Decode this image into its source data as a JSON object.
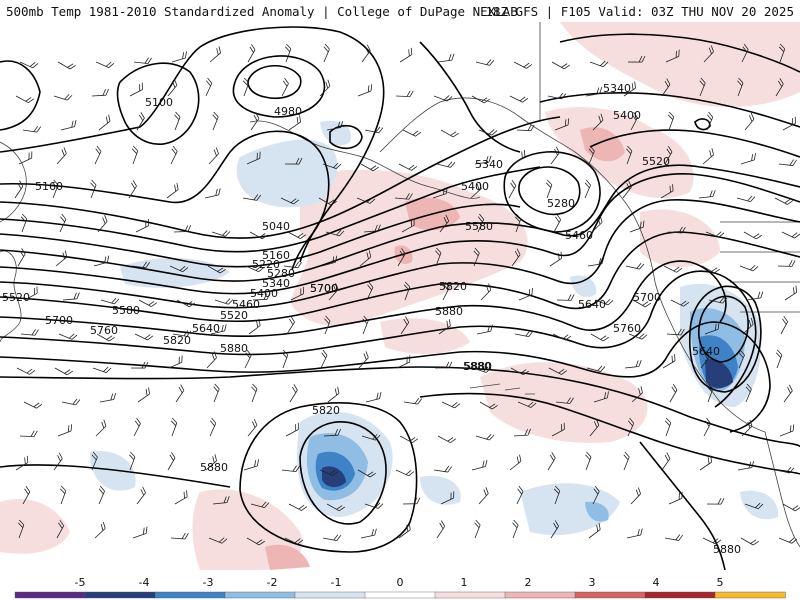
{
  "header": {
    "title_left": "500mb Temp 1981-2010 Standardized Anomaly | College of DuPage NEXLAB",
    "title_right": "18Z GFS | F105 Valid: 03Z THU NOV 20 2025"
  },
  "colors": {
    "anom_neg5": "#5b2a86",
    "anom_neg4": "#263f7a",
    "anom_neg3": "#3e82c8",
    "anom_neg2": "#8fbde3",
    "anom_neg1": "#d6e3f1",
    "anom_pos1": "#f6dede",
    "anom_pos2": "#eeb5b5",
    "anom_pos3": "#d66262",
    "anom_pos4": "#a8252d",
    "anom_pos5": "#f5b82e",
    "contour": "#000000",
    "coastline": "#444444"
  },
  "contour_labels": [
    {
      "id": "h4980",
      "text": "4980"
    },
    {
      "id": "h5100",
      "text": "5100"
    },
    {
      "id": "h5040",
      "text": "5040"
    },
    {
      "id": "h5160a",
      "text": "5160"
    },
    {
      "id": "h5160b",
      "text": "5160"
    },
    {
      "id": "h5220",
      "text": "5220"
    },
    {
      "id": "h5280a",
      "text": "5280"
    },
    {
      "id": "h5340a",
      "text": "5340"
    },
    {
      "id": "h5400a",
      "text": "5400"
    },
    {
      "id": "h5460a",
      "text": "5460"
    },
    {
      "id": "h5520a",
      "text": "5520"
    },
    {
      "id": "h5520w",
      "text": "5520"
    },
    {
      "id": "h5580a",
      "text": "5580"
    },
    {
      "id": "h5640a",
      "text": "5640"
    },
    {
      "id": "h5700a",
      "text": "5700"
    },
    {
      "id": "h5760a",
      "text": "5760"
    },
    {
      "id": "h5820a",
      "text": "5820"
    },
    {
      "id": "h5880a",
      "text": "5880"
    },
    {
      "id": "h5700w",
      "text": "5700"
    },
    {
      "id": "h5700m",
      "text": "5700"
    },
    {
      "id": "h5820m",
      "text": "5820"
    },
    {
      "id": "h5880m",
      "text": "5880"
    },
    {
      "id": "h5880p",
      "text": "5880"
    },
    {
      "id": "h5340b",
      "text": "5340"
    },
    {
      "id": "h5400b",
      "text": "5400"
    },
    {
      "id": "h5580b",
      "text": "5580"
    },
    {
      "id": "h5280b",
      "text": "5280"
    },
    {
      "id": "h5460b",
      "text": "5460"
    },
    {
      "id": "h5340c",
      "text": "5340"
    },
    {
      "id": "h5400c",
      "text": "5400"
    },
    {
      "id": "h5520c",
      "text": "5520"
    },
    {
      "id": "h5640b",
      "text": "5640"
    },
    {
      "id": "h5700b",
      "text": "5700"
    },
    {
      "id": "h5760b",
      "text": "5760"
    },
    {
      "id": "h5640c",
      "text": "5640"
    },
    {
      "id": "h5880b",
      "text": "5880"
    },
    {
      "id": "h5820c",
      "text": "5820"
    },
    {
      "id": "h5880c",
      "text": "5880"
    },
    {
      "id": "h5880d",
      "text": "5880"
    }
  ],
  "colorbar": {
    "ticks": [
      "-5",
      "-4",
      "-3",
      "-2",
      "-1",
      "0",
      "1",
      "2",
      "3",
      "4",
      "5"
    ]
  }
}
